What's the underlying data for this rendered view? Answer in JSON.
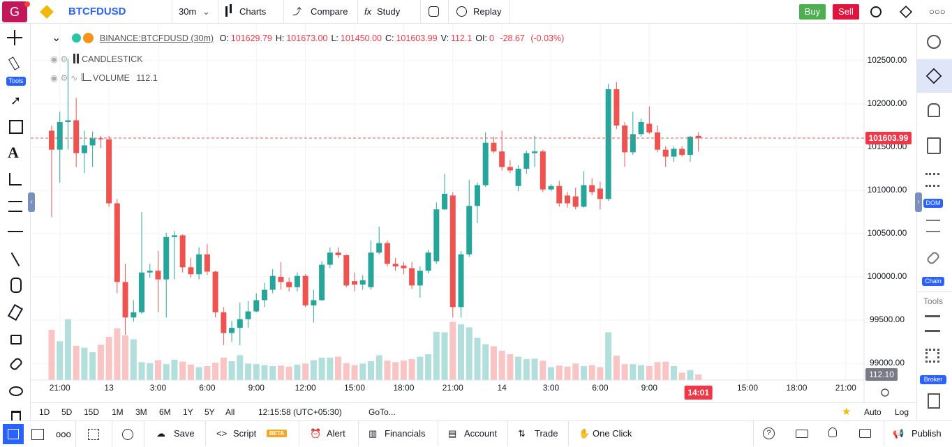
{
  "header": {
    "logo": "G",
    "symbol": "BTCFDUSD",
    "interval": "30m",
    "buttons": [
      "Charts",
      "Compare",
      "Study",
      "Replay"
    ],
    "buy": "Buy",
    "sell": "Sell"
  },
  "left_toolbar": {
    "badge": "Tools"
  },
  "right_sidebar": {
    "badges": [
      "DOM",
      "Chain",
      "Broker"
    ],
    "section": "Tools"
  },
  "legend": {
    "symbol": "BINANCE:BTCFDUSD (30m)",
    "fields": [
      {
        "label": "O:",
        "value": "101629.79"
      },
      {
        "label": "H:",
        "value": "101673.00"
      },
      {
        "label": "L:",
        "value": "101450.00"
      },
      {
        "label": "C:",
        "value": "101603.99"
      },
      {
        "label": "V:",
        "value": "112.1"
      },
      {
        "label": "OI:",
        "value": "0"
      }
    ],
    "change": "-28.67",
    "change_percent": "(-0.03%)",
    "studies": [
      {
        "name": "CANDLESTICK"
      },
      {
        "name": "VOLUME",
        "value": "112.1"
      }
    ]
  },
  "chart": {
    "type": "candlestick",
    "up_color": "#26a69a",
    "down_color": "#ef5350",
    "up_volume_color": "#b2dfdb",
    "down_volume_color": "#f8c4c4",
    "grid": true,
    "ylim": [
      98806,
      102927
    ],
    "yticks": [
      {
        "value": 99000,
        "label": "99000.00"
      },
      {
        "value": 99500,
        "label": "99500.00"
      },
      {
        "value": 100000,
        "label": "100000.00"
      },
      {
        "value": 100500,
        "label": "100500.00"
      },
      {
        "value": 101000,
        "label": "101000.00"
      },
      {
        "value": 101500,
        "label": "101500.00"
      },
      {
        "value": 102000,
        "label": "102000.00"
      },
      {
        "value": 102500,
        "label": "102500.00"
      }
    ],
    "categories": [
      null,
      "21:00",
      null,
      null,
      null,
      null,
      null,
      "13",
      null,
      null,
      null,
      null,
      null,
      "3:00",
      null,
      null,
      null,
      null,
      null,
      "6:00",
      null,
      null,
      null,
      null,
      null,
      "9:00",
      null,
      null,
      null,
      null,
      null,
      "12:00",
      null,
      null,
      null,
      null,
      null,
      "15:00",
      null,
      null,
      null,
      null,
      null,
      "18:00",
      null,
      null,
      null,
      null,
      null,
      "21:00",
      null,
      null,
      null,
      null,
      null,
      "14",
      null,
      null,
      null,
      null,
      null,
      "3:00",
      null,
      null,
      null,
      null,
      null,
      "6:00",
      null,
      null,
      null,
      null,
      null,
      "9:00",
      null,
      null,
      null,
      null,
      null,
      null,
      null,
      null,
      null,
      null,
      null,
      "15:00",
      null,
      null,
      null,
      null,
      null,
      "18:00",
      null,
      null,
      null,
      null,
      null,
      "21:00"
    ],
    "open": [
      101690,
      101470,
      101790,
      101810,
      101430,
      101520,
      101600,
      101590,
      100850,
      99940,
      99530,
      99590,
      100050,
      100070,
      99970,
      100460,
      100480,
      100110,
      100030,
      100260,
      100060,
      99590,
      99350,
      99410,
      99510,
      99600,
      99730,
      99850,
      100000,
      99940,
      99880,
      100010,
      99670,
      99730,
      100140,
      100280,
      100250,
      99950,
      99910,
      99880,
      100280,
      100390,
      100150,
      100130,
      100100,
      99900,
      100070,
      100180,
      100780,
      100940,
      99650,
      100260,
      100820,
      101060,
      101550,
      101450,
      101270,
      101050,
      101250,
      101430,
      101450,
      101010,
      101050,
      100940,
      100930,
      100810,
      101060,
      101020,
      100900,
      102170,
      101750,
      101440,
      101650,
      101770,
      101670,
      101470,
      101390,
      101480,
      101410,
      101629.79,
      null,
      null,
      null,
      null,
      null,
      null,
      null,
      null,
      null,
      null,
      null,
      null,
      null,
      null,
      null,
      null,
      null,
      null
    ],
    "high": [
      101750,
      101910,
      102520,
      102070,
      101690,
      101680,
      101630,
      101630,
      100900,
      100150,
      99730,
      100750,
      100150,
      100300,
      100510,
      100530,
      100490,
      100220,
      100340,
      100380,
      100070,
      99650,
      99490,
      99700,
      99720,
      99810,
      99930,
      100090,
      100170,
      99990,
      100050,
      100030,
      99850,
      100180,
      100340,
      100340,
      100260,
      100050,
      100020,
      100420,
      100580,
      100420,
      100220,
      100170,
      100170,
      100120,
      100310,
      100860,
      101190,
      100980,
      100300,
      101120,
      101090,
      101670,
      101620,
      101690,
      101350,
      101290,
      101460,
      101630,
      101470,
      101070,
      101110,
      100980,
      101030,
      101220,
      101140,
      101100,
      102230,
      102250,
      101790,
      101910,
      101830,
      101970,
      101750,
      101510,
      101510,
      101510,
      101630,
      101673,
      null,
      null,
      null,
      null,
      null,
      null,
      null,
      null,
      null,
      null,
      null,
      null,
      null,
      null,
      null,
      null,
      null,
      null
    ],
    "low": [
      100690,
      101090,
      101470,
      101270,
      101200,
      101270,
      101490,
      100810,
      99810,
      99330,
      99480,
      99570,
      99990,
      99590,
      99530,
      99970,
      100050,
      99990,
      99970,
      100020,
      99530,
      99210,
      99250,
      99210,
      99410,
      99590,
      99650,
      99810,
      99850,
      99830,
      99830,
      99650,
      99470,
      99720,
      100100,
      100220,
      99880,
      99830,
      99850,
      99850,
      100260,
      100120,
      100070,
      100030,
      99860,
      99760,
      100040,
      100150,
      100770,
      99530,
      99530,
      100230,
      100620,
      101040,
      101430,
      101230,
      101200,
      100990,
      101190,
      101270,
      100980,
      100990,
      100810,
      100800,
      100780,
      100800,
      100940,
      100780,
      100880,
      101710,
      101270,
      101410,
      101620,
      101650,
      101440,
      101270,
      101330,
      101390,
      101330,
      101450,
      null,
      null,
      null,
      null,
      null,
      null,
      null,
      null,
      null,
      null,
      null,
      null,
      null,
      null,
      null,
      null,
      null,
      null
    ],
    "close": [
      101470,
      101790,
      101810,
      101430,
      101520,
      101600,
      101590,
      100850,
      99940,
      99530,
      99590,
      100050,
      100070,
      99970,
      100460,
      100480,
      100110,
      100030,
      100260,
      100060,
      99590,
      99350,
      99410,
      99510,
      99600,
      99730,
      99850,
      100010,
      99940,
      99880,
      100010,
      99670,
      99730,
      100140,
      100280,
      100250,
      99900,
      99910,
      99960,
      100280,
      100390,
      100150,
      100120,
      100100,
      99900,
      100070,
      100280,
      100780,
      100960,
      99650,
      100260,
      100820,
      101060,
      101550,
      101450,
      101270,
      101230,
      101250,
      101430,
      101450,
      101010,
      101050,
      100850,
      100850,
      100810,
      101060,
      100980,
      100900,
      102170,
      101750,
      101440,
      101650,
      101790,
      101670,
      101470,
      101390,
      101480,
      101410,
      101620,
      101603.99,
      null,
      null,
      null,
      null,
      null,
      null,
      null,
      null,
      null,
      null,
      null,
      null,
      null,
      null,
      null,
      null,
      null,
      null
    ],
    "volume": [
      1010,
      780,
      1220,
      690,
      650,
      560,
      710,
      870,
      1040,
      900,
      820,
      360,
      340,
      400,
      320,
      410,
      370,
      310,
      260,
      280,
      350,
      450,
      380,
      500,
      330,
      320,
      300,
      280,
      290,
      270,
      310,
      330,
      400,
      450,
      450,
      470,
      340,
      300,
      330,
      380,
      500,
      390,
      360,
      390,
      420,
      470,
      520,
      970,
      960,
      1170,
      1120,
      1060,
      850,
      720,
      680,
      590,
      520,
      470,
      420,
      430,
      390,
      260,
      290,
      270,
      330,
      280,
      300,
      260,
      960,
      490,
      320,
      320,
      300,
      280,
      360,
      370,
      280,
      150,
      200,
      112.1,
      null,
      null,
      null,
      null,
      null,
      null,
      null,
      null,
      null,
      null,
      null,
      null,
      null,
      null,
      null,
      null,
      null,
      null
    ],
    "last_price": {
      "value": 101603.99,
      "label": "101603.99"
    },
    "volume_label": {
      "value": 112.1,
      "label": "112.10"
    },
    "time_label": "14:01"
  },
  "range_bar": {
    "ranges": [
      "1D",
      "5D",
      "15D",
      "1M",
      "3M",
      "6M",
      "1Y",
      "5Y",
      "All"
    ],
    "clock": "12:15:58 (UTC+05:30)",
    "goto": "GoTo...",
    "auto": "Auto",
    "log": "Log"
  },
  "bottom_toolbar": {
    "save": "Save",
    "script": "Script",
    "beta": "BETA",
    "alert": "Alert",
    "financials": "Financials",
    "account": "Account",
    "trade": "Trade",
    "one_click": "One Click",
    "publish": "Publish"
  }
}
